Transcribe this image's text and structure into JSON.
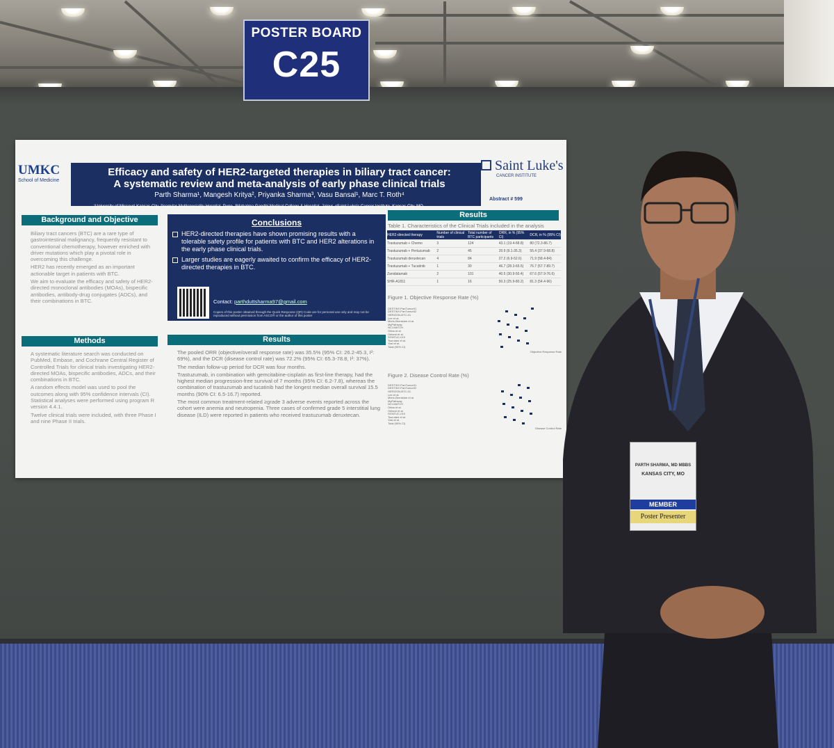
{
  "sign": {
    "title": "POSTER BOARD",
    "number": "C25"
  },
  "poster": {
    "umkc_logo": "UMKC",
    "umkc_sub": "School of Medicine",
    "saint_logo": "Saint Luke's",
    "saint_sub": "CANCER INSTITUTE",
    "title_line1": "Efficacy and safety of HER2-targeted therapies in biliary tract cancer:",
    "title_line2": "A systematic review and meta-analysis of early phase clinical trials",
    "authors": "Parth Sharma¹, Mangesh Kritya², Priyanka Sharma³, Vasu Bansal¹, Marc T. Roth⁴",
    "affiliations": "¹University of Missouri-Kansas City, ²Inamdar Multispeciality Hospital, Pune, ³Mahatma Gandhi Medical College & Hospital, Jaipur, ⁴Saint Luke's Cancer Institute, Kansas City, MO",
    "abstract": "Abstract # 599",
    "background_head": "Background and Objective",
    "background": [
      "Biliary tract cancers (BTC) are a rare type of gastrointestinal malignancy, frequently resistant to conventional chemotherapy, however enriched with driver mutations which play a pivotal role in overcoming this challenge.",
      "HER2 has recently emerged as an important actionable target in patients with BTC.",
      "We aim to evaluate the efficacy and safety of HER2-directed monoclonal antibodies (MOAs), bispecific antibodies, antibody-drug conjugates (ADCs), and their combinations in BTC."
    ],
    "methods_head": "Methods",
    "methods": [
      "A systematic literature search was conducted on PubMed, Embase, and Cochrane Central Register of Controlled Trials for clinical trials investigating HER2-directed MOAs, bispecific antibodies, ADCs, and their combinations in BTC.",
      "A random effects model was used to pool the outcomes along with 95% confidence intervals (CI). Statistical analyses were performed using program R version 4.4.1.",
      "Twelve clinical trials were included, with three Phase I and nine Phase II trials."
    ],
    "conclusions_head": "Conclusions",
    "conclusion_1": "HER2-directed therapies have shown promising results with a tolerable safety profile for patients with BTC and HER2 alterations in the early phase clinical trials.",
    "conclusion_2": "Larger studies are eagerly awaited to confirm the efficacy of HER2-directed therapies in BTC.",
    "contact_label": "Contact:",
    "contact_email": "parthduttsharma97@gmail.com",
    "copies_note": "Copies of this poster obtained through the Quick Response (QR) Code are for personal use only and may not be reproduced without permission from ASCO® or the author of this poster",
    "results_head": "Results",
    "results": [
      "The pooled ORR (objective/overall response rate) was 35.5% (95% CI: 26.2-45.3, I²: 69%), and the DCR (disease control rate) was 72.2% (95% CI: 65.3-78.8, I²: 37%).",
      "The median follow-up period for DCR was four months.",
      "Trastuzumab, in combination with gemcitabine-cisplatin as first-line therapy, had the highest median progression-free survival of 7 months (95% CI: 6.2-7.8), whereas the combination of trastuzumab and tucatinib had the longest median overall survival 15.5 months (90% CI: 6.5-16.7) reported.",
      "The most common treatment-related ≥grade 3 adverse events reported across the cohort were anemia and neutropenia. Three cases of confirmed grade 5 interstitial lung disease (ILD) were reported in patients who received trastuzumab deruxtecan."
    ],
    "table_caption": "Table 1. Characteristics of the Clinical Trials included in the analysis",
    "table_headers": [
      "HER2-directed therapy",
      "Number of clinical trials",
      "Total number of BTC participants",
      "ORR, in % (95% CI)",
      "DCR, in % (95% CI)"
    ],
    "table_rows": [
      [
        "Trastuzumab + Chemo",
        "3",
        "124",
        "43.1 (19.4-68.8)",
        "80 (72.3-86.7)"
      ],
      [
        "Trastuzumab + Pertuzumab",
        "2",
        "45",
        "20.9 (9.1-35.3)",
        "55.4 (37.9-68.8)"
      ],
      [
        "Trastuzumab deruxtecan",
        "4",
        "84",
        "27.2 (6.9-52.6)",
        "71.9 (58.4-84)"
      ],
      [
        "Trastuzumab + Tucatinib",
        "1",
        "30",
        "46.7 (28.3-65.5)",
        "76.7 (57.7-89.7)"
      ],
      [
        "Zanidatamab",
        "2",
        "101",
        "40.5 (30.9-50.4)",
        "67.6 (57.9-76.6)"
      ],
      [
        "SHR-A1811",
        "1",
        "16",
        "50.3 (25.9-80.2)",
        "81.3 (54.4-96)"
      ]
    ],
    "fig1_title": "Figure 1. Objective Response Rate (%)",
    "fig2_title": "Figure 2. Disease Control Rate (%)",
    "forest_studies": [
      "DESTINY-PanTumor01",
      "DESTINY-PanTumor02",
      "HERIZON-BTC-01",
      "Lee et al.",
      "Meric-Bernstam et al.",
      "MyPathway",
      "NCI-MATCH",
      "Ohba et al.",
      "Oeland et al.",
      "SGNTUC-019",
      "Tsurutani et al.",
      "Yasi et al.",
      "Total (95% CI)"
    ],
    "forest_axis_1": "Objective Response Rate",
    "forest_axis_2": "Disease Control Rate"
  },
  "badge": {
    "name": "PARTH SHARMA, MD MBBS",
    "location": "KANSAS CITY, MO",
    "member": "MEMBER",
    "presenter": "Poster Presenter"
  }
}
